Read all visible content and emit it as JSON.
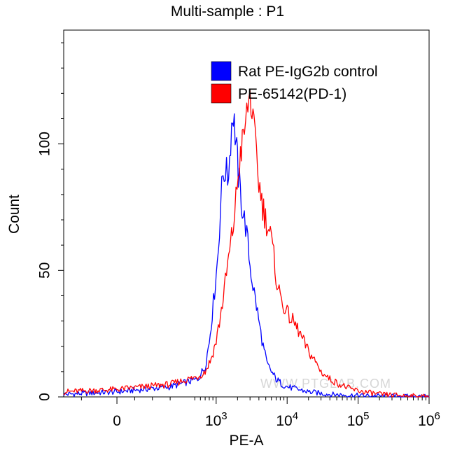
{
  "chart_data": {
    "type": "line",
    "title": "Multi-sample : P1",
    "xlabel": "PE-A",
    "ylabel": "Count",
    "x_scale": "logicle",
    "x_ticks": [
      {
        "value": 0,
        "base": "0",
        "exp": ""
      },
      {
        "value": 1000,
        "base": "10",
        "exp": "3"
      },
      {
        "value": 10000,
        "base": "10",
        "exp": "4"
      },
      {
        "value": 100000,
        "base": "10",
        "exp": "5"
      },
      {
        "value": 1000000,
        "base": "10",
        "exp": "6"
      }
    ],
    "y_ticks": [
      0,
      50,
      100
    ],
    "ylim": [
      0,
      145
    ],
    "grid": false,
    "legend_position": "top-right",
    "series": [
      {
        "name": "Rat PE-IgG2b control",
        "color": "#0000ff",
        "points": [
          [
            -300,
            1
          ],
          [
            0,
            2
          ],
          [
            300,
            4
          ],
          [
            550,
            7
          ],
          [
            700,
            12
          ],
          [
            800,
            22
          ],
          [
            880,
            33
          ],
          [
            950,
            42
          ],
          [
            1000,
            48
          ],
          [
            1080,
            60
          ],
          [
            1150,
            75
          ],
          [
            1250,
            88
          ],
          [
            1350,
            90
          ],
          [
            1450,
            86
          ],
          [
            1550,
            95
          ],
          [
            1650,
            108
          ],
          [
            1750,
            112
          ],
          [
            1850,
            104
          ],
          [
            1950,
            97
          ],
          [
            2050,
            88
          ],
          [
            2200,
            80
          ],
          [
            2400,
            72
          ],
          [
            2600,
            68
          ],
          [
            2800,
            60
          ],
          [
            3000,
            52
          ],
          [
            3300,
            44
          ],
          [
            3700,
            36
          ],
          [
            4100,
            28
          ],
          [
            4600,
            20
          ],
          [
            5200,
            13
          ],
          [
            6000,
            10
          ],
          [
            7000,
            7
          ],
          [
            8500,
            5
          ],
          [
            10000,
            4
          ],
          [
            14000,
            3
          ],
          [
            20000,
            2
          ],
          [
            40000,
            1
          ],
          [
            100000,
            0.5
          ],
          [
            1000000,
            0
          ]
        ]
      },
      {
        "name": "PE-65142(PD-1)",
        "color": "#ff0000",
        "points": [
          [
            -300,
            2
          ],
          [
            0,
            3
          ],
          [
            300,
            5
          ],
          [
            550,
            8
          ],
          [
            700,
            10
          ],
          [
            850,
            15
          ],
          [
            1000,
            22
          ],
          [
            1150,
            32
          ],
          [
            1300,
            42
          ],
          [
            1450,
            52
          ],
          [
            1600,
            60
          ],
          [
            1750,
            68
          ],
          [
            1900,
            78
          ],
          [
            2050,
            88
          ],
          [
            2200,
            96
          ],
          [
            2400,
            102
          ],
          [
            2600,
            108
          ],
          [
            2800,
            115
          ],
          [
            3000,
            120
          ],
          [
            3200,
            112
          ],
          [
            3400,
            105
          ],
          [
            3700,
            96
          ],
          [
            4000,
            85
          ],
          [
            4400,
            78
          ],
          [
            4800,
            72
          ],
          [
            5300,
            68
          ],
          [
            5800,
            64
          ],
          [
            6500,
            55
          ],
          [
            7200,
            45
          ],
          [
            8000,
            40
          ],
          [
            9000,
            36
          ],
          [
            10000,
            33
          ],
          [
            12000,
            30
          ],
          [
            14000,
            27
          ],
          [
            17000,
            22
          ],
          [
            20000,
            18
          ],
          [
            25000,
            14
          ],
          [
            30000,
            10
          ],
          [
            40000,
            7
          ],
          [
            55000,
            5
          ],
          [
            80000,
            3
          ],
          [
            120000,
            2
          ],
          [
            200000,
            1
          ],
          [
            1000000,
            0
          ]
        ]
      }
    ],
    "watermark": "WWW.PTGLAB.COM"
  }
}
